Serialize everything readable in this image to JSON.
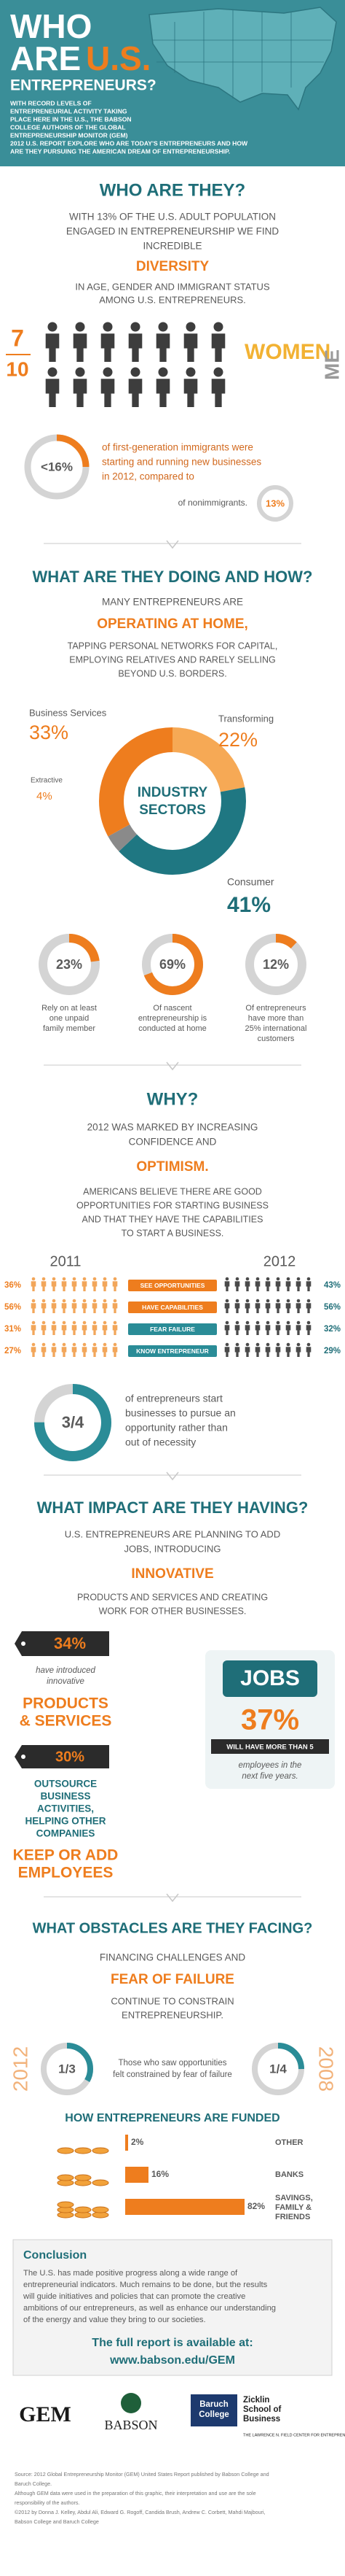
{
  "header": {
    "title": [
      "WHO",
      "ARE",
      "U.S.",
      "ENTREPRENEURS?"
    ],
    "intro": [
      "WITH RECORD LEVELS OF",
      "ENTREPRENEURIAL ACTIVITY TAKING",
      "PLACE HERE IN THE U.S., THE BABSON",
      "COLLEGE AUTHORS OF THE GLOBAL",
      "ENTREPRENEURSHIP MONITOR (GEM)",
      "2012 U.S. REPORT EXPLORE WHO ARE TODAY'S ENTREPRENEURS AND HOW",
      "ARE THEY PURSUING THE AMERICAN DREAM OF ENTREPRENEURSHIP."
    ]
  },
  "who": {
    "heading": "WHO ARE THEY?",
    "lead": [
      "WITH 13% OF THE U.S. ADULT POPULATION",
      "ENGAGED IN ENTREPRENEURSHIP WE FIND",
      "INCREDIBLE"
    ],
    "highlight": "DIVERSITY",
    "follow": [
      "IN AGE, GENDER AND IMMIGRANT STATUS",
      "AMONG U.S. ENTREPRENEURS."
    ],
    "fraction": {
      "numerator": "7",
      "denominator": "10"
    },
    "women": "WOMEN",
    "men": "ME",
    "immigrants": {
      "stat": "<16%",
      "text": [
        "of first-generation immigrants were",
        "starting and running new businesses",
        "in 2012, compared to"
      ],
      "compare_text": "of nonimmigrants.",
      "compare": "13%"
    }
  },
  "doing": {
    "heading": "WHAT ARE THEY DOING AND HOW?",
    "lead": [
      "MANY ENTREPRENEURS ARE"
    ],
    "highlight": "OPERATING AT HOME,",
    "follow": [
      "TAPPING PERSONAL NETWORKS FOR CAPITAL,",
      "EMPLOYING RELATIVES AND RARELY SELLING",
      "BEYOND U.S. BORDERS."
    ],
    "sectors": {
      "center": [
        "INDUSTRY",
        "SECTORS"
      ],
      "items": [
        {
          "name": "Transforming",
          "value": 22,
          "label": "22%",
          "color": "#f6a955"
        },
        {
          "name": "Consumer",
          "value": 41,
          "label": "41%",
          "color": "#1f7782"
        },
        {
          "name": "Extractive",
          "value": 4,
          "label": "4%",
          "color": "#8a8a8a"
        },
        {
          "name": "Business Services",
          "value": 33,
          "label": "33%",
          "color": "#ee7d1e"
        }
      ]
    },
    "donuts": [
      {
        "value": 23,
        "label": "23%",
        "caption": [
          "Rely on at least",
          "one unpaid",
          "family member"
        ]
      },
      {
        "value": 69,
        "label": "69%",
        "caption": [
          "Of nascent",
          "entrepreneurship is",
          "conducted at home"
        ]
      },
      {
        "value": 12,
        "label": "12%",
        "caption": [
          "Of entrepreneurs",
          "have more than",
          "25% international",
          "customers"
        ]
      }
    ]
  },
  "why": {
    "heading": "WHY?",
    "lead": [
      "2012 WAS MARKED BY INCREASING",
      "CONFIDENCE AND"
    ],
    "highlight": "OPTIMISM.",
    "follow": [
      "AMERICANS BELIEVE THERE ARE GOOD",
      "OPPORTUNITIES FOR STARTING BUSINESS",
      "AND THAT THEY HAVE THE CAPABILITIES",
      "TO START A BUSINESS."
    ],
    "years": [
      "2011",
      "2012"
    ],
    "rows": [
      {
        "name": "SEE OPPORTUNITIES",
        "y2011": "36%",
        "y2012": "43%",
        "color": "#ee7d1e"
      },
      {
        "name": "HAVE CAPABILITIES",
        "y2011": "56%",
        "y2012": "56%",
        "color": "#ee7d1e"
      },
      {
        "name": "FEAR FAILURE",
        "y2011": "31%",
        "y2012": "32%",
        "color": "#2a8c97"
      },
      {
        "name": "KNOW ENTREPRENEUR",
        "y2011": "27%",
        "y2012": "29%",
        "color": "#2a8c97"
      }
    ],
    "opportunity": {
      "stat": {
        "value": 0.75,
        "label": "3/4"
      },
      "text": [
        "of entrepreneurs start",
        "businesses to pursue an",
        "opportunity rather than",
        "out of necessity"
      ]
    }
  },
  "impact": {
    "heading": "WHAT IMPACT ARE THEY HAVING?",
    "lead": [
      "U.S. ENTREPRENEURS ARE PLANNING TO ADD",
      "JOBS, INTRODUCING"
    ],
    "highlight": "INNOVATIVE",
    "follow": [
      "PRODUCTS AND SERVICES AND CREATING",
      "WORK FOR OTHER BUSINESSES."
    ],
    "products": {
      "stat": "34%",
      "text": [
        "have introduced",
        "innovative"
      ],
      "title": [
        "PRODUCTS",
        "& SERVICES"
      ]
    },
    "jobs": {
      "title": "JOBS",
      "stat": "37%",
      "text": "WILL HAVE MORE THAN 5",
      "sub": [
        "employees in the",
        "next five years."
      ]
    },
    "outsource": {
      "stat": "30%",
      "text": [
        "OUTSOURCE",
        "BUSINESS",
        "ACTIVITIES,",
        "HELPING OTHER",
        "COMPANIES"
      ],
      "title": [
        "KEEP OR ADD",
        "EMPLOYEES"
      ]
    }
  },
  "obstacles": {
    "heading": "WHAT OBSTACLES ARE THEY FACING?",
    "lead": [
      "FINANCING CHALLENGES AND"
    ],
    "highlight": "FEAR OF FAILURE",
    "follow": [
      "CONTINUE TO CONSTRAIN",
      "ENTREPRENEURSHIP."
    ],
    "compare": {
      "left_year": "2012",
      "left": {
        "value": 0.333,
        "label": "1/3"
      },
      "text": [
        "Those who saw opportunities",
        "felt constrained by fear of failure"
      ],
      "right": {
        "value": 0.25,
        "label": "1/4"
      },
      "right_year": "2008"
    }
  },
  "funding": {
    "title": "HOW ENTREPRENEURS ARE FUNDED",
    "items": [
      {
        "value": 2,
        "label": "2%",
        "name": [
          "OTHER"
        ]
      },
      {
        "value": 16,
        "label": "16%",
        "name": [
          "BANKS"
        ]
      },
      {
        "value": 82,
        "label": "82%",
        "name": [
          "SAVINGS,",
          "FAMILY &",
          "FRIENDS"
        ]
      }
    ]
  },
  "conclusion": {
    "title": "Conclusion",
    "text": [
      "The U.S. has made positive progress along a wide range of",
      "entrepreneurial indicators. Much remains to be done, but the results",
      "will guide initiatives and policies that can promote the creative",
      "ambitions of our entrepreneurs, as well as enhance our understanding",
      "of the energy and value they bring to our societies."
    ],
    "report": [
      "The full report is available at:",
      "www.babson.edu/GEM"
    ]
  },
  "logos": {
    "gem": "GEM",
    "babson": "BABSON",
    "baruch": [
      "Baruch",
      "College"
    ],
    "zicklin": [
      "Zicklin",
      "School of",
      "Business"
    ],
    "field": "THE LAWRENCE N. FIELD CENTER FOR ENTREPRENEURSHIP"
  },
  "footer": [
    "Source: 2012 Global Entrepreneurship Monitor (GEM) United States Report published by Babson College and",
    "Baruch College.",
    "Although GEM data were used in the preparation of this graphic, their interpretation and use are the sole",
    "responsibility of the authors.",
    "©2012 by Donna J. Kelley, Abdul Ali, Edward G. Rogoff, Candida Brush, Andrew C. Corbett, Mahdi Majbouri,",
    "Babson College and Baruch College"
  ]
}
